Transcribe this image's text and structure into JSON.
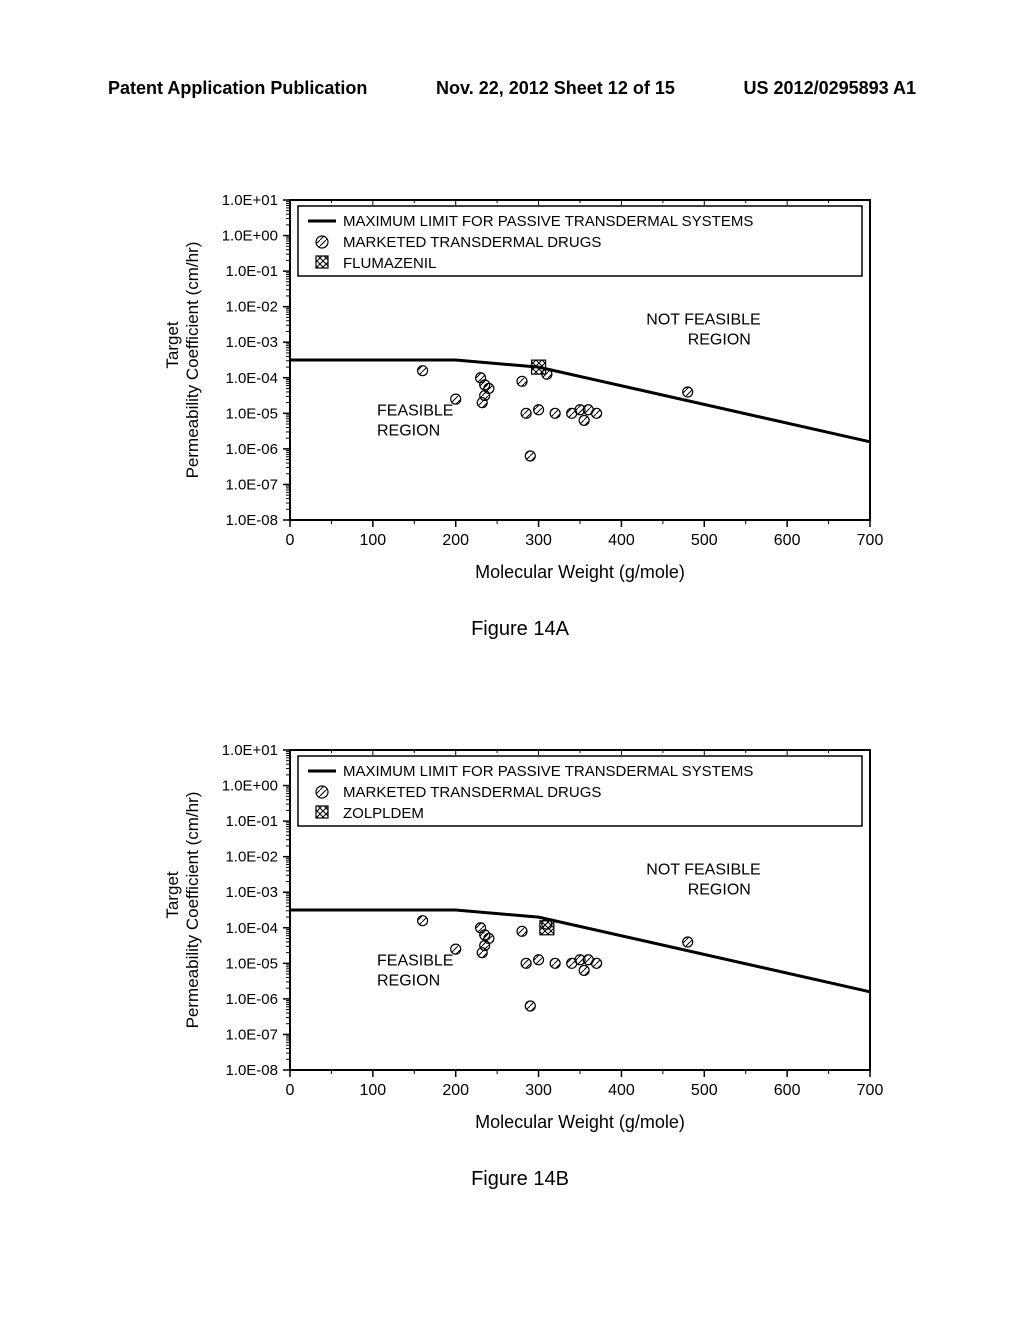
{
  "header": {
    "left": "Patent Application Publication",
    "center": "Nov. 22, 2012  Sheet 12 of 15",
    "right": "US 2012/0295893 A1"
  },
  "chart_common": {
    "xlabel": "Molecular Weight (g/mole)",
    "ylabel1": "Target",
    "ylabel2": "Permeability Coefficient (cm/hr)",
    "xlim": [
      0,
      700
    ],
    "ylim_exp": [
      -8,
      1
    ],
    "xtick_step": 100,
    "background_color": "#ffffff",
    "axis_color": "#000000",
    "line_color": "#000000",
    "legend_line_label": "MAXIMUM LIMIT FOR PASSIVE TRANSDERMAL SYSTEMS",
    "legend_marketed_label": "MARKETED TRANSDERMAL DRUGS",
    "feasible_label": "FEASIBLE REGION",
    "not_feasible_label": "NOT FEASIBLE REGION",
    "ytick_labels": [
      "1.0E-08",
      "1.0E-07",
      "1.0E-06",
      "1.0E-05",
      "1.0E-04",
      "1.0E-03",
      "1.0E-02",
      "1.0E-01",
      "1.0E+00",
      "1.0E+01"
    ],
    "line_points_mw": [
      0,
      200,
      300,
      700
    ],
    "line_points_exp": [
      -3.5,
      -3.5,
      -3.7,
      -5.8
    ],
    "marketed_points": [
      {
        "mw": 160,
        "exp": -3.8
      },
      {
        "mw": 200,
        "exp": -4.6
      },
      {
        "mw": 230,
        "exp": -4.0
      },
      {
        "mw": 235,
        "exp": -4.2
      },
      {
        "mw": 235,
        "exp": -4.5
      },
      {
        "mw": 232,
        "exp": -4.7
      },
      {
        "mw": 240,
        "exp": -4.3
      },
      {
        "mw": 280,
        "exp": -4.1
      },
      {
        "mw": 285,
        "exp": -5.0
      },
      {
        "mw": 290,
        "exp": -6.2
      },
      {
        "mw": 300,
        "exp": -4.9
      },
      {
        "mw": 320,
        "exp": -5.0
      },
      {
        "mw": 340,
        "exp": -5.0
      },
      {
        "mw": 350,
        "exp": -4.9
      },
      {
        "mw": 355,
        "exp": -5.2
      },
      {
        "mw": 360,
        "exp": -4.9
      },
      {
        "mw": 370,
        "exp": -5.0
      },
      {
        "mw": 310,
        "exp": -3.9
      },
      {
        "mw": 480,
        "exp": -4.4
      }
    ],
    "marker_radius": 5,
    "marker_fill": "#ffffff",
    "marker_stroke": "#000000",
    "hatch_stroke": "#000000"
  },
  "chart_a": {
    "type": "scatter-line-log",
    "caption": "Figure 14A",
    "legend_special_label": "FLUMAZENIL",
    "special_point": {
      "mw": 300,
      "exp": -3.7,
      "style": "crosshatch"
    }
  },
  "chart_b": {
    "type": "scatter-line-log",
    "caption": "Figure 14B",
    "legend_special_label": "ZOLPLDEM",
    "special_point": {
      "mw": 310,
      "exp": -4.0,
      "style": "crosshatch"
    }
  }
}
